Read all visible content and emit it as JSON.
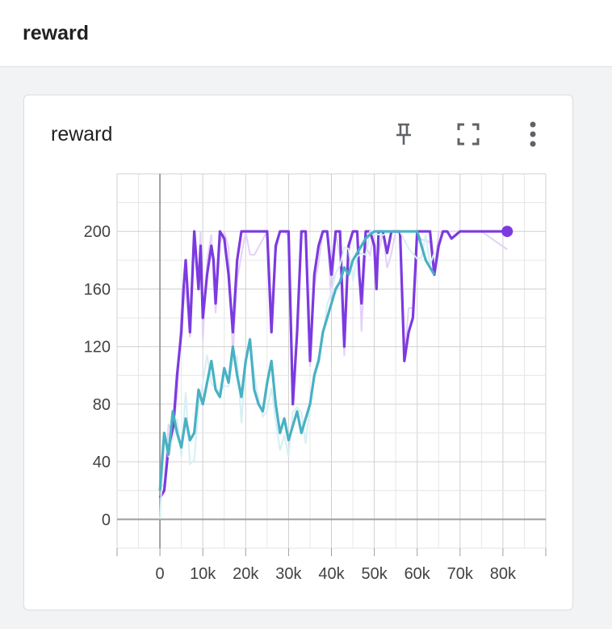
{
  "header": {
    "title": "reward"
  },
  "card": {
    "title": "reward",
    "icons": {
      "pin": "pin-icon",
      "fullscreen": "fullscreen-icon",
      "more": "more-vert-icon"
    }
  },
  "chart_data": {
    "type": "line",
    "title": "reward",
    "xlabel": "",
    "ylabel": "",
    "xlim": [
      -10000,
      90000
    ],
    "ylim": [
      -20,
      240
    ],
    "grid": true,
    "x_ticks": [
      "0",
      "10k",
      "20k",
      "30k",
      "40k",
      "50k",
      "60k",
      "70k",
      "80k"
    ],
    "y_ticks": [
      "0",
      "40",
      "80",
      "120",
      "160",
      "200"
    ],
    "series": [
      {
        "color": "#7c3ae0",
        "raw_color": "#e3d2f7",
        "x": [
          0,
          1000,
          2000,
          3000,
          4000,
          5000,
          5500,
          6000,
          7000,
          8000,
          9000,
          9500,
          10000,
          11000,
          12000,
          12500,
          13000,
          14000,
          15000,
          16000,
          17000,
          18000,
          19000,
          20000,
          21000,
          22000,
          25000,
          26000,
          27000,
          28000,
          29000,
          30000,
          31000,
          32000,
          33000,
          34000,
          35000,
          36000,
          37000,
          38000,
          39000,
          40000,
          41000,
          42000,
          43000,
          44000,
          45000,
          46000,
          46500,
          47000,
          48000,
          49000,
          50000,
          50500,
          51000,
          52000,
          53000,
          54000,
          55000,
          56000,
          57000,
          58000,
          59000,
          60000,
          61000,
          62000,
          63000,
          64000,
          65000,
          66000,
          67000,
          68000,
          70000,
          75000,
          81000
        ],
        "y": [
          15,
          20,
          50,
          60,
          100,
          130,
          160,
          180,
          130,
          200,
          160,
          190,
          140,
          170,
          190,
          180,
          150,
          200,
          195,
          170,
          130,
          180,
          200,
          200,
          200,
          200,
          200,
          130,
          190,
          200,
          200,
          200,
          80,
          130,
          200,
          200,
          110,
          170,
          190,
          200,
          200,
          170,
          200,
          200,
          120,
          190,
          200,
          200,
          170,
          150,
          200,
          200,
          190,
          160,
          200,
          200,
          185,
          200,
          200,
          200,
          110,
          130,
          140,
          200,
          200,
          200,
          200,
          170,
          190,
          200,
          200,
          195,
          200,
          200,
          200
        ]
      },
      {
        "color": "#48b1c3",
        "raw_color": "#d6eff3",
        "x": [
          0,
          1000,
          2000,
          3000,
          4000,
          5000,
          6000,
          7000,
          8000,
          9000,
          10000,
          11000,
          12000,
          13000,
          14000,
          15000,
          16000,
          17000,
          18000,
          19000,
          20000,
          21000,
          22000,
          23000,
          24000,
          25000,
          26000,
          27000,
          28000,
          29000,
          30000,
          31000,
          32000,
          33000,
          34000,
          35000,
          36000,
          37000,
          38000,
          39000,
          40000,
          41000,
          42000,
          43000,
          44000,
          45000,
          46000,
          47000,
          48000,
          49000,
          50000,
          52000,
          54000,
          56000,
          58000,
          60000,
          61000,
          62000,
          63000,
          64000
        ],
        "y": [
          20,
          60,
          45,
          75,
          60,
          50,
          70,
          55,
          60,
          90,
          80,
          95,
          110,
          90,
          85,
          105,
          95,
          120,
          100,
          85,
          110,
          125,
          90,
          80,
          75,
          95,
          110,
          80,
          60,
          70,
          55,
          65,
          75,
          60,
          70,
          80,
          100,
          110,
          130,
          140,
          150,
          160,
          165,
          175,
          170,
          180,
          185,
          190,
          195,
          198,
          200,
          200,
          200,
          200,
          200,
          200,
          190,
          180,
          175,
          170
        ]
      }
    ]
  }
}
